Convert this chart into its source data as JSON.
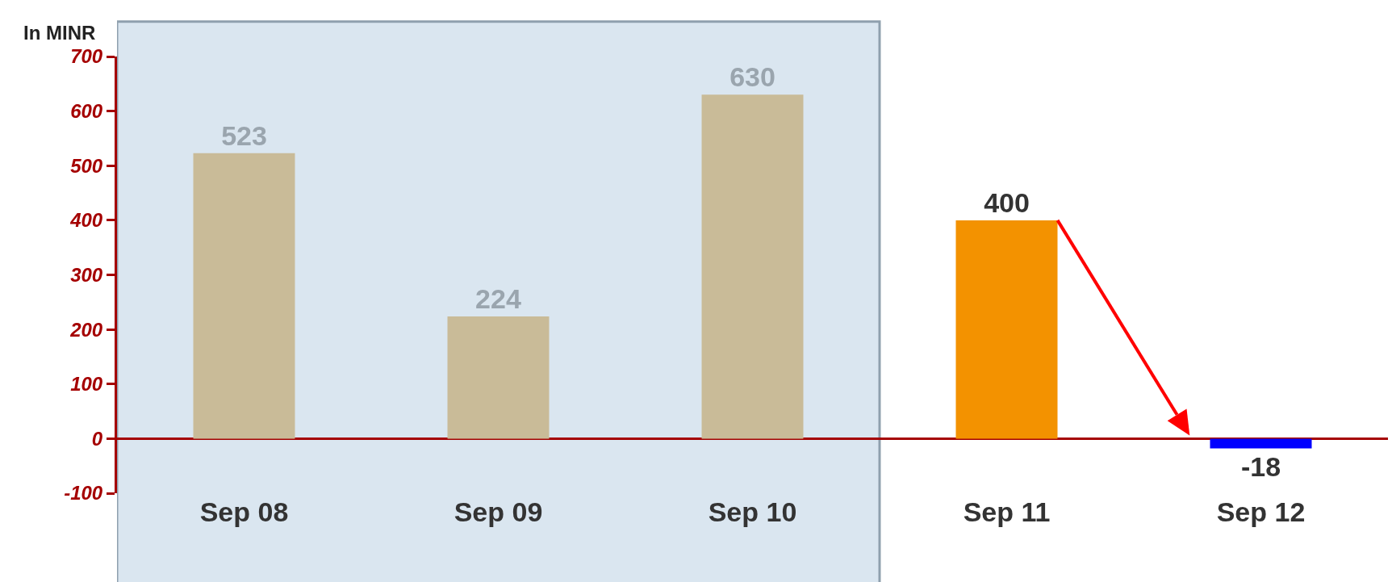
{
  "chart_data": {
    "type": "bar",
    "ylabel": "In MINR",
    "categories": [
      "Sep 08",
      "Sep 09",
      "Sep 10",
      "Sep 11",
      "Sep 12"
    ],
    "values": [
      523,
      224,
      630,
      400,
      -18
    ],
    "colors": [
      "#c9bb98",
      "#c9bb98",
      "#c9bb98",
      "#f39200",
      "#0000ff"
    ],
    "ylim": [
      -100,
      700
    ],
    "yticks": [
      -100,
      0,
      100,
      200,
      300,
      400,
      500,
      600,
      700
    ],
    "grid": false,
    "data_labels": true,
    "bands": [
      {
        "axis": "x",
        "from": "Sep 08",
        "to": "Sep 10",
        "color": "#dae6f0"
      }
    ]
  }
}
